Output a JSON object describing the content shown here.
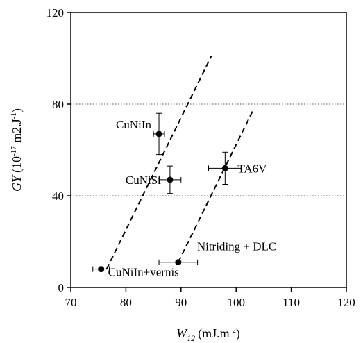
{
  "chart_data": {
    "type": "scatter",
    "title": "",
    "xlabel": {
      "symbol": "W",
      "sub": "12",
      "unit": "(mJ.m",
      "unit_sup": "-2",
      "unit_end": ")"
    },
    "ylabel": {
      "symbol": "GY",
      "unit": "(10",
      "unit_sup": "-17",
      "unit_mid": " m2.J",
      "unit_sup2": "-1",
      "unit_end": ")"
    },
    "xlim": [
      70,
      120
    ],
    "ylim": [
      0,
      120
    ],
    "xticks": [
      70,
      80,
      90,
      100,
      110,
      120
    ],
    "yticks": [
      0,
      40,
      80,
      120
    ],
    "grid": {
      "horizontal_dotted_at": [
        40,
        80
      ]
    },
    "points": [
      {
        "label": "CuNiIn",
        "x": 86,
        "y": 67,
        "xerr": 1,
        "yerr": 9
      },
      {
        "label": "CuNiSi",
        "x": 88,
        "y": 47,
        "xerr": 2,
        "yerr": 6
      },
      {
        "label": "TA6V",
        "x": 98,
        "y": 52,
        "xerr": 3,
        "yerr": 7
      },
      {
        "label": "Nitriding + DLC",
        "x": 89.5,
        "y": 11,
        "xerr": 3.5,
        "yerr": 0
      },
      {
        "label": "CuNiIn+vernis",
        "x": 75.5,
        "y": 8,
        "xerr": 1.5,
        "yerr": 0
      }
    ],
    "trend_lines": [
      {
        "from": [
          76.5,
          8
        ],
        "to": [
          95.5,
          101
        ]
      },
      {
        "from": [
          89.5,
          11
        ],
        "to": [
          103,
          77
        ]
      }
    ]
  }
}
